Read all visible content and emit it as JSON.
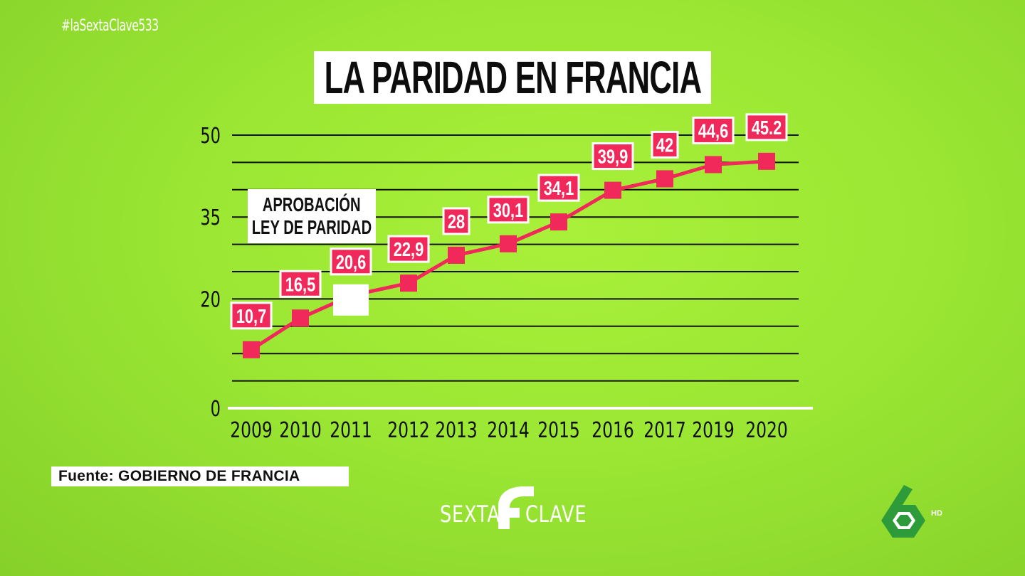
{
  "hashtag": "#laSextaClave533",
  "title": "LA PARIDAD EN FRANCIA",
  "annotation": {
    "line1": "APROBACIÓN",
    "line2": "LEY DE PARIDAD"
  },
  "source_label": "Fuente: GOBIERNO DE FRANCIA",
  "show_logo": {
    "left": "SEXTA",
    "right": "CLAVE"
  },
  "channel_logo": {
    "badge": "HD"
  },
  "colors": {
    "background": "#9be733",
    "series": "#f0295a",
    "gridlines": "#111111",
    "baseline": "#ffffff",
    "label_box": "#ffffff"
  },
  "chart_data": {
    "type": "line",
    "title": "LA PARIDAD EN FRANCIA",
    "xlabel": "",
    "ylabel": "",
    "categories": [
      "2009",
      "2010",
      "2011",
      "2012",
      "2013",
      "2014",
      "2015",
      "2016",
      "2017",
      "2019",
      "2020"
    ],
    "series": [
      {
        "values": [
          10.7,
          16.5,
          20.6,
          22.9,
          28,
          30.1,
          34.1,
          39.9,
          42,
          44.6,
          45.2
        ],
        "data_labels": [
          "10,7",
          "16,5",
          "20,6",
          "22,9",
          "28",
          "30,1",
          "34,1",
          "39,9",
          "42",
          "44,6",
          "45.2"
        ]
      }
    ],
    "y_ticks": [
      "0",
      "20",
      "35",
      "50"
    ],
    "y_tick_values": [
      0,
      20,
      35,
      50
    ],
    "ylim": [
      0,
      50
    ],
    "grid": true,
    "grid_step": 5,
    "legend": "none",
    "annotation_at": "2011"
  }
}
